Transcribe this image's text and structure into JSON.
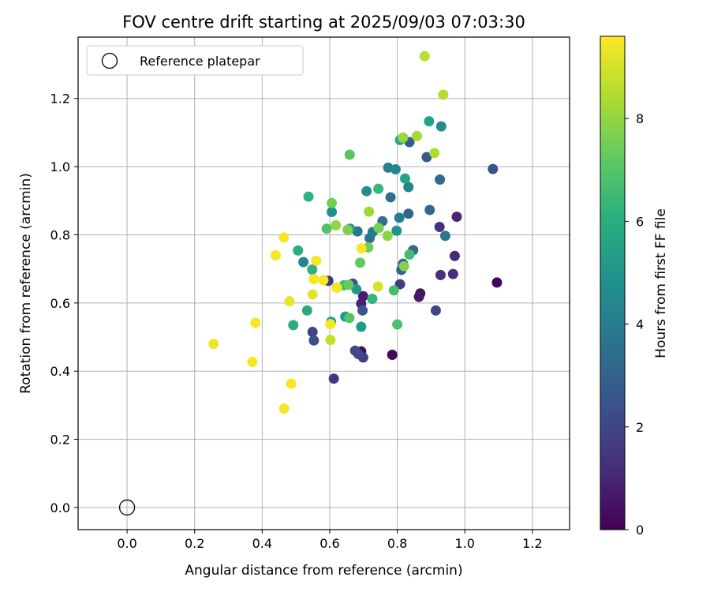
{
  "chart_data": {
    "type": "scatter",
    "title": "FOV centre drift starting at 2025/09/03 07:03:30",
    "xlabel": "Angular distance from reference (arcmin)",
    "ylabel": "Rotation from reference (arcmin)",
    "xlim": [
      -0.145,
      1.31
    ],
    "ylim": [
      -0.065,
      1.38
    ],
    "xticks": [
      0.0,
      0.2,
      0.4,
      0.6,
      0.8,
      1.0,
      1.2
    ],
    "xtick_labels": [
      "0.0",
      "0.2",
      "0.4",
      "0.6",
      "0.8",
      "1.0",
      "1.2"
    ],
    "yticks": [
      0.0,
      0.2,
      0.4,
      0.6,
      0.8,
      1.0,
      1.2
    ],
    "ytick_labels": [
      "0.0",
      "0.2",
      "0.4",
      "0.6",
      "0.8",
      "1.0",
      "1.2"
    ],
    "grid": true,
    "legend": {
      "position": "top-left",
      "label": "Reference platepar"
    },
    "reference_point": {
      "x": 0.0,
      "y": 0.0
    },
    "colorbar": {
      "label": "Hours from first FF file",
      "colormap": "viridis",
      "range": [
        0,
        9.6
      ],
      "ticks": [
        0,
        2,
        4,
        6,
        8
      ],
      "tick_labels": [
        "0",
        "2",
        "4",
        "6",
        "8"
      ]
    },
    "points": [
      {
        "x": 1.095,
        "y": 0.66,
        "h": 0.1
      },
      {
        "x": 0.785,
        "y": 0.448,
        "h": 0.2
      },
      {
        "x": 0.693,
        "y": 0.458,
        "h": 0.3
      },
      {
        "x": 0.868,
        "y": 0.628,
        "h": 0.5
      },
      {
        "x": 0.864,
        "y": 0.618,
        "h": 0.6
      },
      {
        "x": 0.699,
        "y": 0.62,
        "h": 0.8
      },
      {
        "x": 0.693,
        "y": 0.598,
        "h": 0.9
      },
      {
        "x": 0.976,
        "y": 0.853,
        "h": 1.0
      },
      {
        "x": 0.97,
        "y": 0.738,
        "h": 1.1
      },
      {
        "x": 0.965,
        "y": 0.685,
        "h": 1.2
      },
      {
        "x": 0.928,
        "y": 0.682,
        "h": 1.3
      },
      {
        "x": 0.925,
        "y": 0.823,
        "h": 1.4
      },
      {
        "x": 0.612,
        "y": 0.378,
        "h": 1.5
      },
      {
        "x": 0.596,
        "y": 0.665,
        "h": 1.6
      },
      {
        "x": 0.808,
        "y": 0.655,
        "h": 1.7
      },
      {
        "x": 0.699,
        "y": 0.44,
        "h": 1.8
      },
      {
        "x": 0.549,
        "y": 0.515,
        "h": 1.9
      },
      {
        "x": 0.914,
        "y": 0.578,
        "h": 2.0
      },
      {
        "x": 0.685,
        "y": 0.45,
        "h": 2.1
      },
      {
        "x": 0.675,
        "y": 0.46,
        "h": 2.2
      },
      {
        "x": 0.553,
        "y": 0.49,
        "h": 2.3
      },
      {
        "x": 1.083,
        "y": 0.993,
        "h": 2.4
      },
      {
        "x": 0.668,
        "y": 0.657,
        "h": 2.5
      },
      {
        "x": 0.697,
        "y": 0.578,
        "h": 2.6
      },
      {
        "x": 0.887,
        "y": 1.028,
        "h": 2.7
      },
      {
        "x": 0.836,
        "y": 1.072,
        "h": 2.8
      },
      {
        "x": 0.812,
        "y": 0.697,
        "h": 2.9
      },
      {
        "x": 0.817,
        "y": 0.715,
        "h": 3.0
      },
      {
        "x": 0.833,
        "y": 0.862,
        "h": 3.1
      },
      {
        "x": 0.896,
        "y": 0.873,
        "h": 3.2
      },
      {
        "x": 0.926,
        "y": 0.962,
        "h": 3.3
      },
      {
        "x": 0.847,
        "y": 0.755,
        "h": 3.4
      },
      {
        "x": 0.78,
        "y": 0.91,
        "h": 3.5
      },
      {
        "x": 0.756,
        "y": 0.84,
        "h": 3.6
      },
      {
        "x": 0.718,
        "y": 0.79,
        "h": 3.7
      },
      {
        "x": 0.942,
        "y": 0.797,
        "h": 3.8
      },
      {
        "x": 0.682,
        "y": 0.81,
        "h": 3.9
      },
      {
        "x": 0.727,
        "y": 0.808,
        "h": 4.0
      },
      {
        "x": 0.806,
        "y": 0.85,
        "h": 4.1
      },
      {
        "x": 0.773,
        "y": 0.997,
        "h": 4.2
      },
      {
        "x": 0.833,
        "y": 0.94,
        "h": 4.3
      },
      {
        "x": 0.522,
        "y": 0.72,
        "h": 4.4
      },
      {
        "x": 0.795,
        "y": 0.992,
        "h": 4.5
      },
      {
        "x": 0.93,
        "y": 1.118,
        "h": 4.6
      },
      {
        "x": 0.709,
        "y": 0.928,
        "h": 4.7
      },
      {
        "x": 0.606,
        "y": 0.867,
        "h": 4.8
      },
      {
        "x": 0.798,
        "y": 0.812,
        "h": 4.9
      },
      {
        "x": 0.66,
        "y": 0.818,
        "h": 5.0
      },
      {
        "x": 0.679,
        "y": 0.64,
        "h": 5.1
      },
      {
        "x": 0.693,
        "y": 0.53,
        "h": 5.2
      },
      {
        "x": 0.646,
        "y": 0.56,
        "h": 5.3
      },
      {
        "x": 0.604,
        "y": 0.545,
        "h": 5.4
      },
      {
        "x": 0.823,
        "y": 0.965,
        "h": 5.5
      },
      {
        "x": 0.894,
        "y": 1.133,
        "h": 5.6
      },
      {
        "x": 0.808,
        "y": 1.078,
        "h": 5.7
      },
      {
        "x": 0.533,
        "y": 0.578,
        "h": 5.8
      },
      {
        "x": 0.492,
        "y": 0.535,
        "h": 5.9
      },
      {
        "x": 0.506,
        "y": 0.754,
        "h": 6.0
      },
      {
        "x": 0.548,
        "y": 0.698,
        "h": 6.1
      },
      {
        "x": 0.537,
        "y": 0.912,
        "h": 6.2
      },
      {
        "x": 0.726,
        "y": 0.612,
        "h": 6.3
      },
      {
        "x": 0.744,
        "y": 0.935,
        "h": 6.4
      },
      {
        "x": 0.642,
        "y": 0.652,
        "h": 6.5
      },
      {
        "x": 0.836,
        "y": 0.742,
        "h": 6.6
      },
      {
        "x": 0.79,
        "y": 0.637,
        "h": 6.7
      },
      {
        "x": 0.8,
        "y": 0.537,
        "h": 6.8
      },
      {
        "x": 0.591,
        "y": 0.818,
        "h": 6.9
      },
      {
        "x": 0.658,
        "y": 0.556,
        "h": 7.0
      },
      {
        "x": 0.659,
        "y": 1.035,
        "h": 7.1
      },
      {
        "x": 0.69,
        "y": 0.718,
        "h": 7.2
      },
      {
        "x": 0.656,
        "y": 0.653,
        "h": 7.3
      },
      {
        "x": 0.714,
        "y": 0.763,
        "h": 7.4
      },
      {
        "x": 0.606,
        "y": 0.893,
        "h": 7.5
      },
      {
        "x": 0.745,
        "y": 0.82,
        "h": 7.6
      },
      {
        "x": 0.653,
        "y": 0.815,
        "h": 7.7
      },
      {
        "x": 0.82,
        "y": 0.708,
        "h": 7.8
      },
      {
        "x": 0.771,
        "y": 0.797,
        "h": 7.9
      },
      {
        "x": 0.618,
        "y": 0.828,
        "h": 8.0
      },
      {
        "x": 0.817,
        "y": 1.085,
        "h": 8.1
      },
      {
        "x": 0.716,
        "y": 0.868,
        "h": 8.2
      },
      {
        "x": 0.858,
        "y": 1.09,
        "h": 8.3
      },
      {
        "x": 0.91,
        "y": 1.04,
        "h": 8.4
      },
      {
        "x": 0.936,
        "y": 1.211,
        "h": 8.5
      },
      {
        "x": 0.881,
        "y": 1.324,
        "h": 8.6
      },
      {
        "x": 0.602,
        "y": 0.492,
        "h": 8.8
      },
      {
        "x": 0.743,
        "y": 0.648,
        "h": 9.0
      },
      {
        "x": 0.62,
        "y": 0.645,
        "h": 9.1
      },
      {
        "x": 0.549,
        "y": 0.625,
        "h": 9.2
      },
      {
        "x": 0.481,
        "y": 0.605,
        "h": 9.3
      },
      {
        "x": 0.256,
        "y": 0.48,
        "h": 9.4
      },
      {
        "x": 0.371,
        "y": 0.427,
        "h": 9.5
      },
      {
        "x": 0.38,
        "y": 0.542,
        "h": 9.5
      },
      {
        "x": 0.486,
        "y": 0.363,
        "h": 9.5
      },
      {
        "x": 0.465,
        "y": 0.29,
        "h": 9.5
      },
      {
        "x": 0.44,
        "y": 0.74,
        "h": 9.5
      },
      {
        "x": 0.464,
        "y": 0.792,
        "h": 9.5
      },
      {
        "x": 0.56,
        "y": 0.724,
        "h": 9.5
      },
      {
        "x": 0.553,
        "y": 0.67,
        "h": 9.5
      },
      {
        "x": 0.581,
        "y": 0.667,
        "h": 9.5
      },
      {
        "x": 0.602,
        "y": 0.538,
        "h": 9.5
      },
      {
        "x": 0.694,
        "y": 0.76,
        "h": 9.5
      },
      {
        "x": 0.622,
        "y": 0.645,
        "h": 9.5
      }
    ]
  }
}
